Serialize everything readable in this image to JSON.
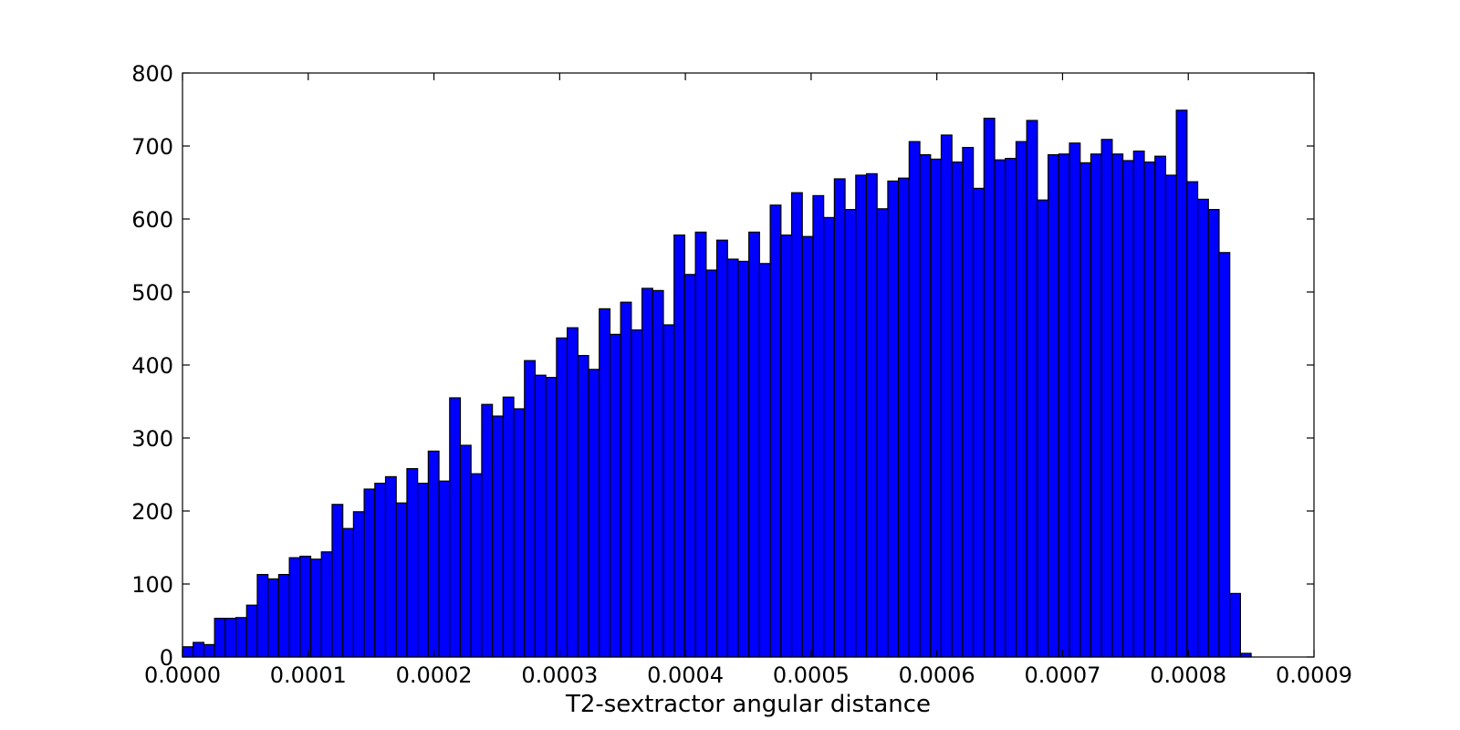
{
  "chart_data": {
    "type": "bar",
    "xlabel": "T2-sextractor angular distance",
    "ylabel": "",
    "title": "",
    "xlim": [
      0.0,
      0.0009
    ],
    "ylim": [
      0,
      800
    ],
    "x_ticks": [
      0.0,
      0.0001,
      0.0002,
      0.0003,
      0.0004,
      0.0005,
      0.0006,
      0.0007,
      0.0008,
      0.0009
    ],
    "x_tick_labels": [
      "0.0000",
      "0.0001",
      "0.0002",
      "0.0003",
      "0.0004",
      "0.0005",
      "0.0006",
      "0.0007",
      "0.0008",
      "0.0009"
    ],
    "y_ticks": [
      0,
      100,
      200,
      300,
      400,
      500,
      600,
      700,
      800
    ],
    "y_tick_labels": [
      "0",
      "100",
      "200",
      "300",
      "400",
      "500",
      "600",
      "700",
      "800"
    ],
    "bin_start": 0.0,
    "bin_width": 8.5e-06,
    "values": [
      14,
      20,
      17,
      53,
      53,
      54,
      71,
      113,
      107,
      113,
      136,
      138,
      134,
      144,
      209,
      176,
      199,
      230,
      238,
      247,
      211,
      258,
      238,
      282,
      241,
      355,
      290,
      251,
      346,
      330,
      356,
      340,
      406,
      386,
      383,
      437,
      451,
      413,
      394,
      477,
      442,
      486,
      448,
      505,
      502,
      455,
      578,
      524,
      582,
      530,
      571,
      545,
      542,
      582,
      539,
      619,
      578,
      636,
      576,
      632,
      602,
      655,
      613,
      660,
      662,
      614,
      652,
      656,
      706,
      688,
      682,
      715,
      678,
      698,
      642,
      738,
      681,
      683,
      706,
      735,
      626,
      688,
      689,
      704,
      677,
      689,
      709,
      689,
      680,
      693,
      678,
      686,
      660,
      749,
      651,
      627,
      613,
      554,
      87,
      5
    ],
    "bar_color": "#0000ff",
    "edge_color": "#000000",
    "grid": false
  }
}
